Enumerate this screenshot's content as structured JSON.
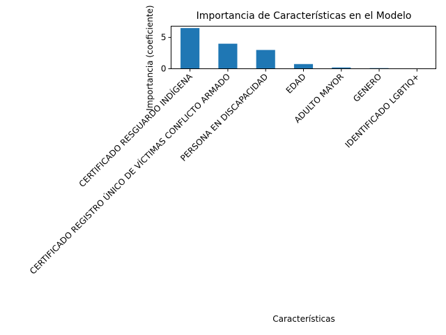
{
  "chart_data": {
    "type": "bar",
    "title": "Importancia de Características en el Modelo",
    "xlabel": "Características",
    "ylabel": "Importancia (coeficiente)",
    "categories": [
      "CERTIFICADO RESGUARDO INDÍGENA",
      "CERTIFICADO REGISTRO ÚNICO DE VÍCTIMAS CONFLICTO ARMADO",
      "PERSONA EN DISCAPACIDAD",
      "EDAD",
      "ADULTO MAYOR",
      "GENERO",
      "IDENTIFICADO LGBTIQ+"
    ],
    "values": [
      6.5,
      4.0,
      3.0,
      0.75,
      0.2,
      0.1,
      0.02
    ],
    "yticks": [
      0,
      5
    ],
    "ylim": [
      0,
      6.8
    ],
    "bar_color": "#1f77b4",
    "grid": false,
    "legend": "none"
  }
}
